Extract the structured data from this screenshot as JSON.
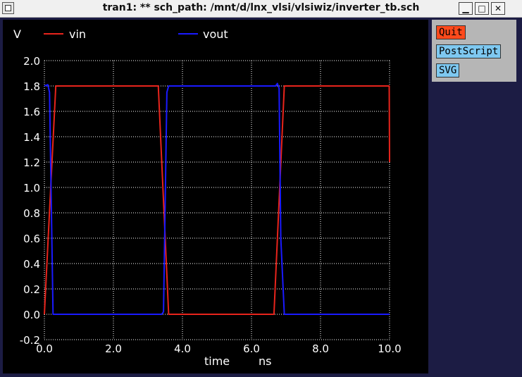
{
  "window": {
    "title": "tran1: ** sch_path: /mnt/d/lnx_vlsi/vlsiwiz/inverter_tb.sch",
    "minimize_glyph": "▁",
    "maximize_glyph": "□",
    "close_glyph": "✕"
  },
  "panel": {
    "quit_label": "Quit",
    "postscript_label": "PostScript",
    "svg_label": "SVG"
  },
  "chart_data": {
    "type": "line",
    "ylabel": "V",
    "xlabel": "time",
    "xunit": "ns",
    "xlim": [
      0,
      10
    ],
    "ylim": [
      -0.2,
      2.0
    ],
    "xticks": [
      0,
      2,
      4,
      6,
      8,
      10
    ],
    "xtick_labels": [
      "0.0",
      "2.0",
      "4.0",
      "6.0",
      "8.0",
      "10.0"
    ],
    "yticks": [
      -0.2,
      0,
      0.2,
      0.4,
      0.6,
      0.8,
      1.0,
      1.2,
      1.4,
      1.6,
      1.8,
      2.0
    ],
    "ytick_labels": [
      "-0.2",
      "0.0",
      "0.2",
      "0.4",
      "0.6",
      "0.8",
      "1.0",
      "1.2",
      "1.4",
      "1.6",
      "1.8",
      "2.0"
    ],
    "grid": true,
    "legend": "top-left",
    "series": [
      {
        "name": "vin",
        "color": "#e8241c",
        "x": [
          0,
          0.33,
          3.3,
          3.6,
          6.65,
          6.95,
          9.99,
          10.0
        ],
        "y": [
          0,
          1.8,
          1.8,
          0,
          0,
          1.8,
          1.8,
          1.2
        ]
      },
      {
        "name": "vout",
        "color": "#1a1aff",
        "x": [
          0,
          0.1,
          0.15,
          0.25,
          3.4,
          3.45,
          3.55,
          3.6,
          6.7,
          6.75,
          6.8,
          6.85,
          6.95,
          10.0
        ],
        "y": [
          1.8,
          1.81,
          1.75,
          0,
          0,
          0.02,
          1.75,
          1.8,
          1.8,
          1.82,
          1.78,
          0.6,
          0,
          0
        ]
      }
    ]
  }
}
